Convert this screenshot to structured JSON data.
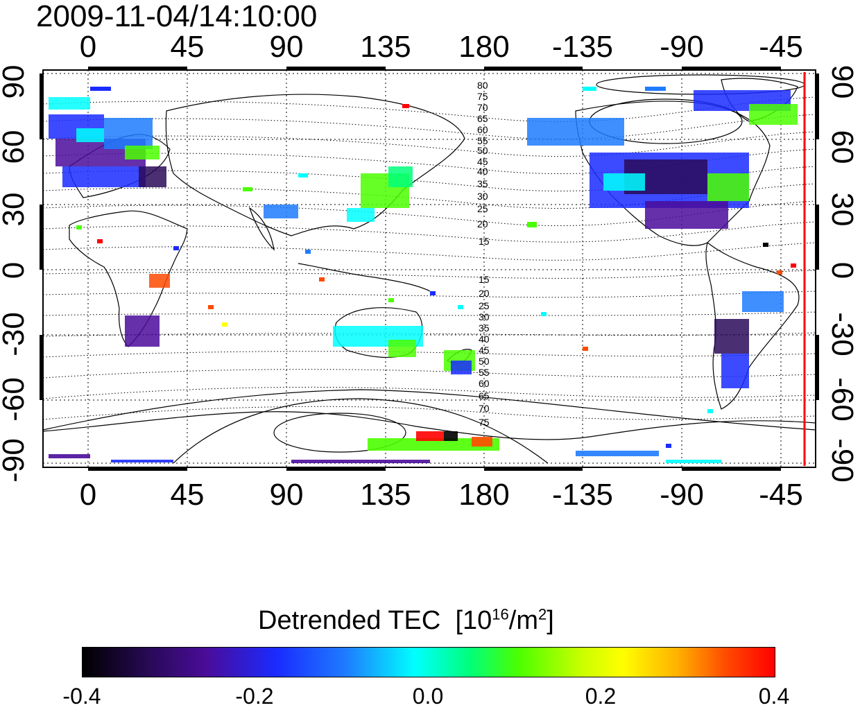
{
  "timestamp": "2009-11-04/14:10:00",
  "map": {
    "projection": "equirectangular",
    "x_axis_ticks": [
      "0",
      "45",
      "90",
      "135",
      "180",
      "-135",
      "-90",
      "-45"
    ],
    "y_axis_ticks": [
      "90",
      "60",
      "30",
      "0",
      "-30",
      "-60",
      "-90"
    ],
    "magnetic_latitude_labels_north": [
      "80",
      "75",
      "70",
      "65",
      "60",
      "55",
      "50",
      "45",
      "40",
      "35",
      "30",
      "25",
      "20",
      "15"
    ],
    "magnetic_latitude_labels_south": [
      "15",
      "20",
      "25",
      "30",
      "35",
      "40",
      "45",
      "50",
      "55",
      "60",
      "65",
      "70",
      "75"
    ],
    "terminator_line_color": "#ff0000",
    "coastline_color": "#000000"
  },
  "colorbar": {
    "title": "Detrended TEC",
    "units_prefix": "[10",
    "units_exp1": "16",
    "units_mid": "/m",
    "units_exp2": "2",
    "units_suffix": "]",
    "tick_labels": [
      "-0.4",
      "-0.2",
      "0.0",
      "0.2",
      "0.4"
    ],
    "range": [
      -0.4,
      0.4
    ],
    "colormap": [
      "#000000",
      "#4a0c9a",
      "#1a2bff",
      "#00ffff",
      "#4bff00",
      "#ffff00",
      "#ff0000"
    ]
  }
}
